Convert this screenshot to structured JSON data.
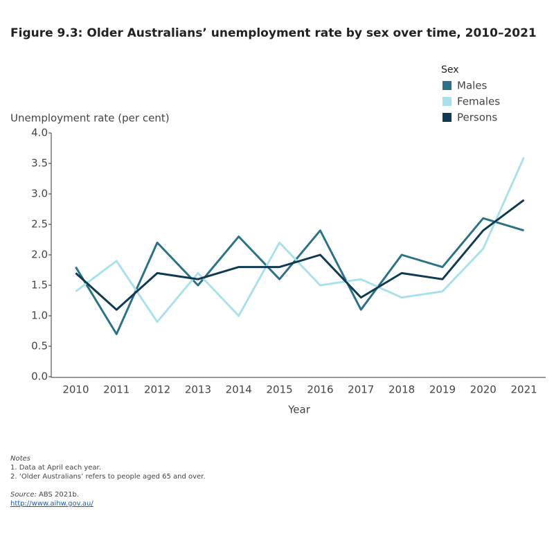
{
  "chart_data": {
    "type": "line",
    "title": "Figure 9.3: Older Australians’ unemployment rate by sex over time, 2010–2021",
    "legend_title": "Sex",
    "legend_position": "upper right",
    "y_label": "Unemployment rate (per cent)",
    "x_label": "Year",
    "categories": [
      "2010",
      "2011",
      "2012",
      "2013",
      "2014",
      "2015",
      "2016",
      "2017",
      "2018",
      "2019",
      "2020",
      "2021"
    ],
    "series": [
      {
        "name": "Males",
        "color": "#2b7289",
        "values": [
          1.8,
          0.7,
          2.2,
          1.5,
          2.3,
          1.6,
          2.4,
          1.1,
          2.0,
          1.8,
          2.6,
          2.4
        ]
      },
      {
        "name": "Females",
        "color": "#a9e1eb",
        "values": [
          1.4,
          1.9,
          0.9,
          1.7,
          1.0,
          2.2,
          1.5,
          1.6,
          1.3,
          1.4,
          2.1,
          3.6
        ]
      },
      {
        "name": "Persons",
        "color": "#0e3b52",
        "values": [
          1.7,
          1.1,
          1.7,
          1.6,
          1.8,
          1.8,
          2.0,
          1.3,
          1.7,
          1.6,
          2.4,
          2.9
        ]
      }
    ],
    "ylim": [
      0,
      4
    ],
    "yticks": [
      {
        "value": 0,
        "label": "0.0"
      },
      0.5,
      {
        "value": 1,
        "label": "1.0"
      },
      1.5,
      {
        "value": 2,
        "label": "2.0"
      },
      2.5,
      {
        "value": 3,
        "label": "3.0"
      },
      3.5,
      {
        "value": 4,
        "label": "4.0"
      }
    ]
  },
  "notes": {
    "heading": "Notes",
    "items": [
      "1. Data at April each year.",
      "2. ‘Older Australians’ refers to people aged 65 and over."
    ]
  },
  "source": {
    "label": "Source:",
    "text": "ABS 2021b."
  },
  "link": "http://www.aihw.gov.au/"
}
